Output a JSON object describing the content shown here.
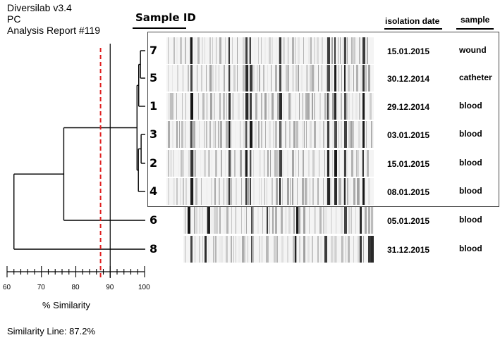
{
  "header": {
    "line1": "Diversilab v3.4",
    "line2": "PC",
    "line3": "Analysis Report #119"
  },
  "sample_id_header": "Sample ID",
  "columns": {
    "isolation_date": "isolation date",
    "sample": "sample"
  },
  "samples": [
    {
      "id": "7",
      "date": "15.01.2015",
      "source": "wound"
    },
    {
      "id": "5",
      "date": "30.12.2014",
      "source": "catheter"
    },
    {
      "id": "1",
      "date": "29.12.2014",
      "source": "blood"
    },
    {
      "id": "3",
      "date": "03.01.2015",
      "source": "blood"
    },
    {
      "id": "2",
      "date": "15.01.2015",
      "source": "blood"
    },
    {
      "id": "4",
      "date": "08.01.2015",
      "source": "blood"
    },
    {
      "id": "6",
      "date": "05.01.2015",
      "source": "blood"
    },
    {
      "id": "8",
      "date": "31.12.2015",
      "source": "blood"
    }
  ],
  "axis": {
    "ticks": [
      "60",
      "70",
      "80",
      "90",
      "100"
    ],
    "title": "% Similarity",
    "min": 60,
    "max": 100
  },
  "similarity_line_label": "Similarity Line: 87.2%",
  "similarity_line_value": 87.2,
  "reference_line_value": 90,
  "dendrogram": {
    "leaf_order": [
      "7",
      "5",
      "1",
      "3",
      "2",
      "4",
      "6",
      "8"
    ],
    "merges": [
      {
        "members": [
          "7",
          "5"
        ],
        "similarity": 98.8
      },
      {
        "members": [
          "7",
          "5",
          "1"
        ],
        "similarity": 98.3
      },
      {
        "members": [
          "3",
          "2"
        ],
        "similarity": 99.0
      },
      {
        "members": [
          "3",
          "2",
          "4"
        ],
        "similarity": 98.2
      },
      {
        "members": [
          "7",
          "5",
          "1",
          "3",
          "2",
          "4"
        ],
        "similarity": 97.8
      },
      {
        "members": [
          "7",
          "5",
          "1",
          "3",
          "2",
          "4",
          "6"
        ],
        "similarity": 76.5
      },
      {
        "members": [
          "7",
          "5",
          "1",
          "3",
          "2",
          "4",
          "6",
          "8"
        ],
        "similarity": 62.0
      }
    ],
    "colors": {
      "tree": "#000000",
      "similarity_line": "#e02020"
    }
  }
}
